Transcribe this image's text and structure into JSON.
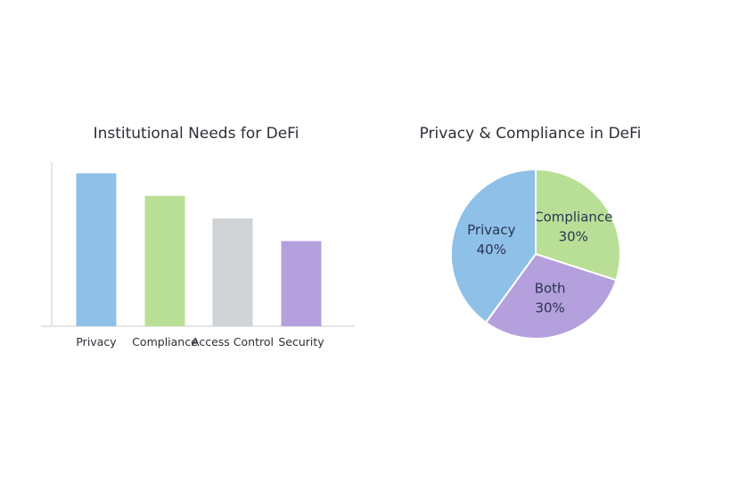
{
  "chart_data": [
    {
      "type": "bar",
      "title": "Institutional Needs for DeFi",
      "categories": [
        "Privacy",
        "Compliance",
        "Access Control",
        "Security"
      ],
      "values": [
        88,
        75,
        62,
        49
      ],
      "ylim": [
        0,
        100
      ],
      "xlabel": "",
      "ylabel": "",
      "grid": false,
      "colors": [
        "#8ec0e8",
        "#b9df96",
        "#cfd3d6",
        "#b5a0de"
      ]
    },
    {
      "type": "pie",
      "title": "Privacy & Compliance in DeFi",
      "labels": [
        "Compliance",
        "Both",
        "Privacy"
      ],
      "values": [
        30,
        30,
        40
      ],
      "value_labels": [
        "30%",
        "30%",
        "40%"
      ],
      "colors": [
        "#b9df96",
        "#b5a0de",
        "#8ec0e8"
      ]
    }
  ]
}
